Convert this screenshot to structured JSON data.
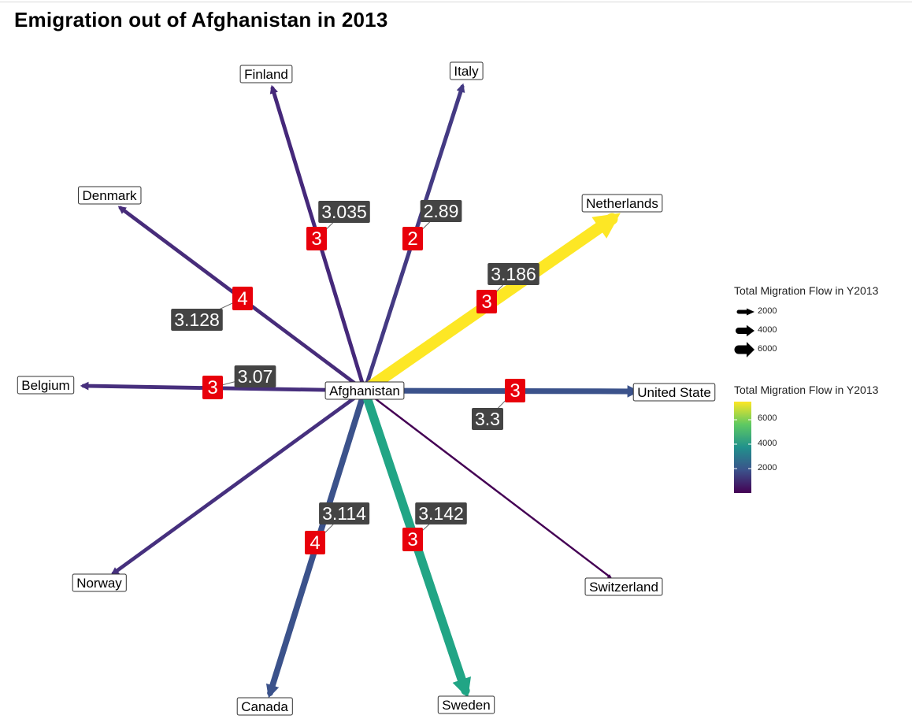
{
  "title": "Emigration out of Afghanistan in 2013",
  "source": {
    "name": "Afghanistan"
  },
  "edges": [
    {
      "target": "Finland",
      "width_value": 1800,
      "color": "#45287a",
      "id_label": "3",
      "value_label": "3.035"
    },
    {
      "target": "Italy",
      "width_value": 1900,
      "color": "#443a83",
      "id_label": "2",
      "value_label": "2.89"
    },
    {
      "target": "Netherlands",
      "width_value": 7200,
      "color": "#fde725",
      "id_label": "3",
      "value_label": "3.186"
    },
    {
      "target": "Denmark",
      "width_value": 1700,
      "color": "#472c7a",
      "id_label": "4",
      "value_label": "3.128"
    },
    {
      "target": "Belgium",
      "width_value": 1800,
      "color": "#472f7d",
      "id_label": "3",
      "value_label": "3.07"
    },
    {
      "target": "United State",
      "width_value": 3000,
      "color": "#3b528b",
      "id_label": "3",
      "value_label": "3.3"
    },
    {
      "target": "Switzerland",
      "width_value": 500,
      "color": "#440154",
      "id_label": "",
      "value_label": ""
    },
    {
      "target": "Norway",
      "width_value": 1700,
      "color": "#46307e",
      "id_label": "",
      "value_label": ""
    },
    {
      "target": "Canada",
      "width_value": 3300,
      "color": "#3b528b",
      "id_label": "4",
      "value_label": "3.114"
    },
    {
      "target": "Sweden",
      "width_value": 5200,
      "color": "#21a585",
      "id_label": "3",
      "value_label": "3.142"
    }
  ],
  "legend_size": {
    "title": "Total Migration Flow in Y2013",
    "labels": [
      "2000",
      "4000",
      "6000"
    ]
  },
  "legend_color": {
    "title": "Total Migration Flow in Y2013",
    "labels": [
      "6000",
      "4000",
      "2000"
    ],
    "gradient": [
      "#fde725",
      "#5ec962",
      "#21918c",
      "#3b528b",
      "#440154"
    ]
  },
  "colors": {
    "id_badge": "#e8000b",
    "value_badge": "#444444"
  }
}
